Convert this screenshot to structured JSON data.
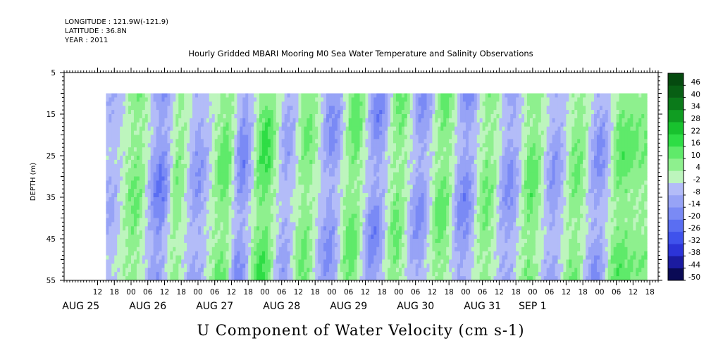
{
  "header": {
    "longitude": "LONGITUDE : 121.9W(-121.9)",
    "latitude": "LATITUDE : 36.8N",
    "year": "YEAR : 2011"
  },
  "chart_data": {
    "type": "heatmap",
    "title": "Hourly Gridded MBARI Mooring M0 Sea Water Temperature and Salinity Observations",
    "variable_title": "U Component of Water Velocity (cm s-1)",
    "ylabel": "DEPTH (m)",
    "ylim": [
      55,
      5
    ],
    "y_reversed": true,
    "y_ticks": [
      5,
      15,
      25,
      35,
      45,
      55
    ],
    "data_depth_range": [
      10,
      55
    ],
    "x_range_hours": [
      -15,
      198
    ],
    "x_data_range_hours": [
      0,
      194
    ],
    "x_ticks": [
      {
        "h": -3,
        "label": "12"
      },
      {
        "h": 3,
        "label": "18"
      },
      {
        "h": 9,
        "label": "00"
      },
      {
        "h": 15,
        "label": "06"
      },
      {
        "h": 21,
        "label": "12"
      },
      {
        "h": 27,
        "label": "18"
      },
      {
        "h": 33,
        "label": "00"
      },
      {
        "h": 39,
        "label": "06"
      },
      {
        "h": 45,
        "label": "12"
      },
      {
        "h": 51,
        "label": "18"
      },
      {
        "h": 57,
        "label": "00"
      },
      {
        "h": 63,
        "label": "06"
      },
      {
        "h": 69,
        "label": "12"
      },
      {
        "h": 75,
        "label": "18"
      },
      {
        "h": 81,
        "label": "00"
      },
      {
        "h": 87,
        "label": "06"
      },
      {
        "h": 93,
        "label": "12"
      },
      {
        "h": 99,
        "label": "18"
      },
      {
        "h": 105,
        "label": "00"
      },
      {
        "h": 111,
        "label": "06"
      },
      {
        "h": 117,
        "label": "12"
      },
      {
        "h": 123,
        "label": "18"
      },
      {
        "h": 129,
        "label": "00"
      },
      {
        "h": 135,
        "label": "06"
      },
      {
        "h": 141,
        "label": "12"
      },
      {
        "h": 147,
        "label": "18"
      },
      {
        "h": 153,
        "label": "00"
      },
      {
        "h": 159,
        "label": "06"
      },
      {
        "h": 165,
        "label": "12"
      },
      {
        "h": 171,
        "label": "18"
      },
      {
        "h": 177,
        "label": "00"
      },
      {
        "h": 183,
        "label": "06"
      },
      {
        "h": 189,
        "label": "12"
      },
      {
        "h": 195,
        "label": "18"
      }
    ],
    "x_day_labels": [
      {
        "h": -9,
        "label": "AUG 25"
      },
      {
        "h": 15,
        "label": "AUG 26"
      },
      {
        "h": 39,
        "label": "AUG 27"
      },
      {
        "h": 63,
        "label": "AUG 28"
      },
      {
        "h": 87,
        "label": "AUG 29"
      },
      {
        "h": 111,
        "label": "AUG 30"
      },
      {
        "h": 135,
        "label": "AUG 31"
      },
      {
        "h": 153,
        "label": "SEP  1"
      }
    ],
    "colorbar": {
      "levels": [
        -50,
        -44,
        -38,
        -32,
        -26,
        -20,
        -14,
        -8,
        -2,
        4,
        10,
        16,
        22,
        28,
        34,
        40,
        46
      ],
      "labels": [
        "46",
        "40",
        "34",
        "28",
        "22",
        "16",
        "10",
        "4",
        "-2",
        "-8",
        "-14",
        "-20",
        "-26",
        "-32",
        "-38",
        "-44",
        "-50"
      ],
      "colors": [
        "#0a0a55",
        "#1b1ba0",
        "#2c34d8",
        "#3f52ec",
        "#5a6ef2",
        "#7a8af5",
        "#97a3f6",
        "#b3bcf8",
        "#bdf5bd",
        "#8ef08e",
        "#5fea6a",
        "#2edd45",
        "#18c22e",
        "#109d22",
        "#0b7a1a",
        "#085f14",
        "#054a0f"
      ]
    },
    "value_pattern": {
      "description": "alternating tidal bands of negative (blue) and positive (green) U velocity",
      "band_centers_hours": [
        3,
        12,
        21,
        27,
        34,
        44,
        50,
        58,
        66,
        73,
        82,
        90,
        98,
        106,
        114,
        122,
        130,
        138,
        146,
        154,
        162,
        170,
        178,
        186,
        193
      ],
      "band_values": [
        -8,
        10,
        -18,
        8,
        -12,
        12,
        -16,
        16,
        -10,
        10,
        -14,
        12,
        -16,
        10,
        -14,
        12,
        -16,
        10,
        -14,
        12,
        -12,
        10,
        -14,
        12,
        8
      ]
    }
  }
}
